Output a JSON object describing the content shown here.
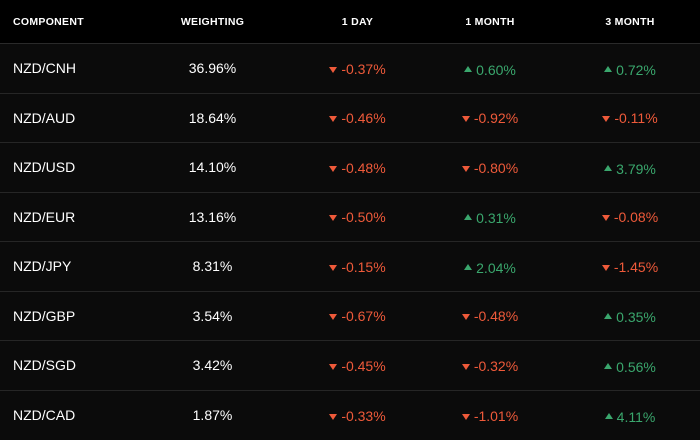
{
  "colors": {
    "negative": "#ef5a3a",
    "positive": "#3aa76d",
    "background": "#0b0b0b",
    "header_background": "#000000"
  },
  "headers": {
    "component": "COMPONENT",
    "weighting": "WEIGHTING",
    "day1": "1 DAY",
    "month1": "1 MONTH",
    "month3": "3 MONTH"
  },
  "rows": [
    {
      "component": "NZD/CNH",
      "weighting": "36.96%",
      "day1": {
        "value": "-0.37%",
        "direction": "down",
        "icon": "triangle-down-icon"
      },
      "month1": {
        "value": "0.60%",
        "direction": "up",
        "icon": "triangle-up-icon"
      },
      "month3": {
        "value": "0.72%",
        "direction": "up",
        "icon": "triangle-up-icon"
      }
    },
    {
      "component": "NZD/AUD",
      "weighting": "18.64%",
      "day1": {
        "value": "-0.46%",
        "direction": "down",
        "icon": "triangle-down-icon"
      },
      "month1": {
        "value": "-0.92%",
        "direction": "down",
        "icon": "triangle-down-icon"
      },
      "month3": {
        "value": "-0.11%",
        "direction": "down",
        "icon": "triangle-down-icon"
      }
    },
    {
      "component": "NZD/USD",
      "weighting": "14.10%",
      "day1": {
        "value": "-0.48%",
        "direction": "down",
        "icon": "triangle-down-icon"
      },
      "month1": {
        "value": "-0.80%",
        "direction": "down",
        "icon": "triangle-down-icon"
      },
      "month3": {
        "value": "3.79%",
        "direction": "up",
        "icon": "triangle-up-icon"
      }
    },
    {
      "component": "NZD/EUR",
      "weighting": "13.16%",
      "day1": {
        "value": "-0.50%",
        "direction": "down",
        "icon": "triangle-down-icon"
      },
      "month1": {
        "value": "0.31%",
        "direction": "up",
        "icon": "triangle-up-icon"
      },
      "month3": {
        "value": "-0.08%",
        "direction": "down",
        "icon": "triangle-down-icon"
      }
    },
    {
      "component": "NZD/JPY",
      "weighting": "8.31%",
      "day1": {
        "value": "-0.15%",
        "direction": "down",
        "icon": "triangle-down-icon"
      },
      "month1": {
        "value": "2.04%",
        "direction": "up",
        "icon": "triangle-up-icon"
      },
      "month3": {
        "value": "-1.45%",
        "direction": "down",
        "icon": "triangle-down-icon"
      }
    },
    {
      "component": "NZD/GBP",
      "weighting": "3.54%",
      "day1": {
        "value": "-0.67%",
        "direction": "down",
        "icon": "triangle-down-icon"
      },
      "month1": {
        "value": "-0.48%",
        "direction": "down",
        "icon": "triangle-down-icon"
      },
      "month3": {
        "value": "0.35%",
        "direction": "up",
        "icon": "triangle-up-icon"
      }
    },
    {
      "component": "NZD/SGD",
      "weighting": "3.42%",
      "day1": {
        "value": "-0.45%",
        "direction": "down",
        "icon": "triangle-down-icon"
      },
      "month1": {
        "value": "-0.32%",
        "direction": "down",
        "icon": "triangle-down-icon"
      },
      "month3": {
        "value": "0.56%",
        "direction": "up",
        "icon": "triangle-up-icon"
      }
    },
    {
      "component": "NZD/CAD",
      "weighting": "1.87%",
      "day1": {
        "value": "-0.33%",
        "direction": "down",
        "icon": "triangle-down-icon"
      },
      "month1": {
        "value": "-1.01%",
        "direction": "down",
        "icon": "triangle-down-icon"
      },
      "month3": {
        "value": "4.11%",
        "direction": "up",
        "icon": "triangle-up-icon"
      }
    }
  ]
}
